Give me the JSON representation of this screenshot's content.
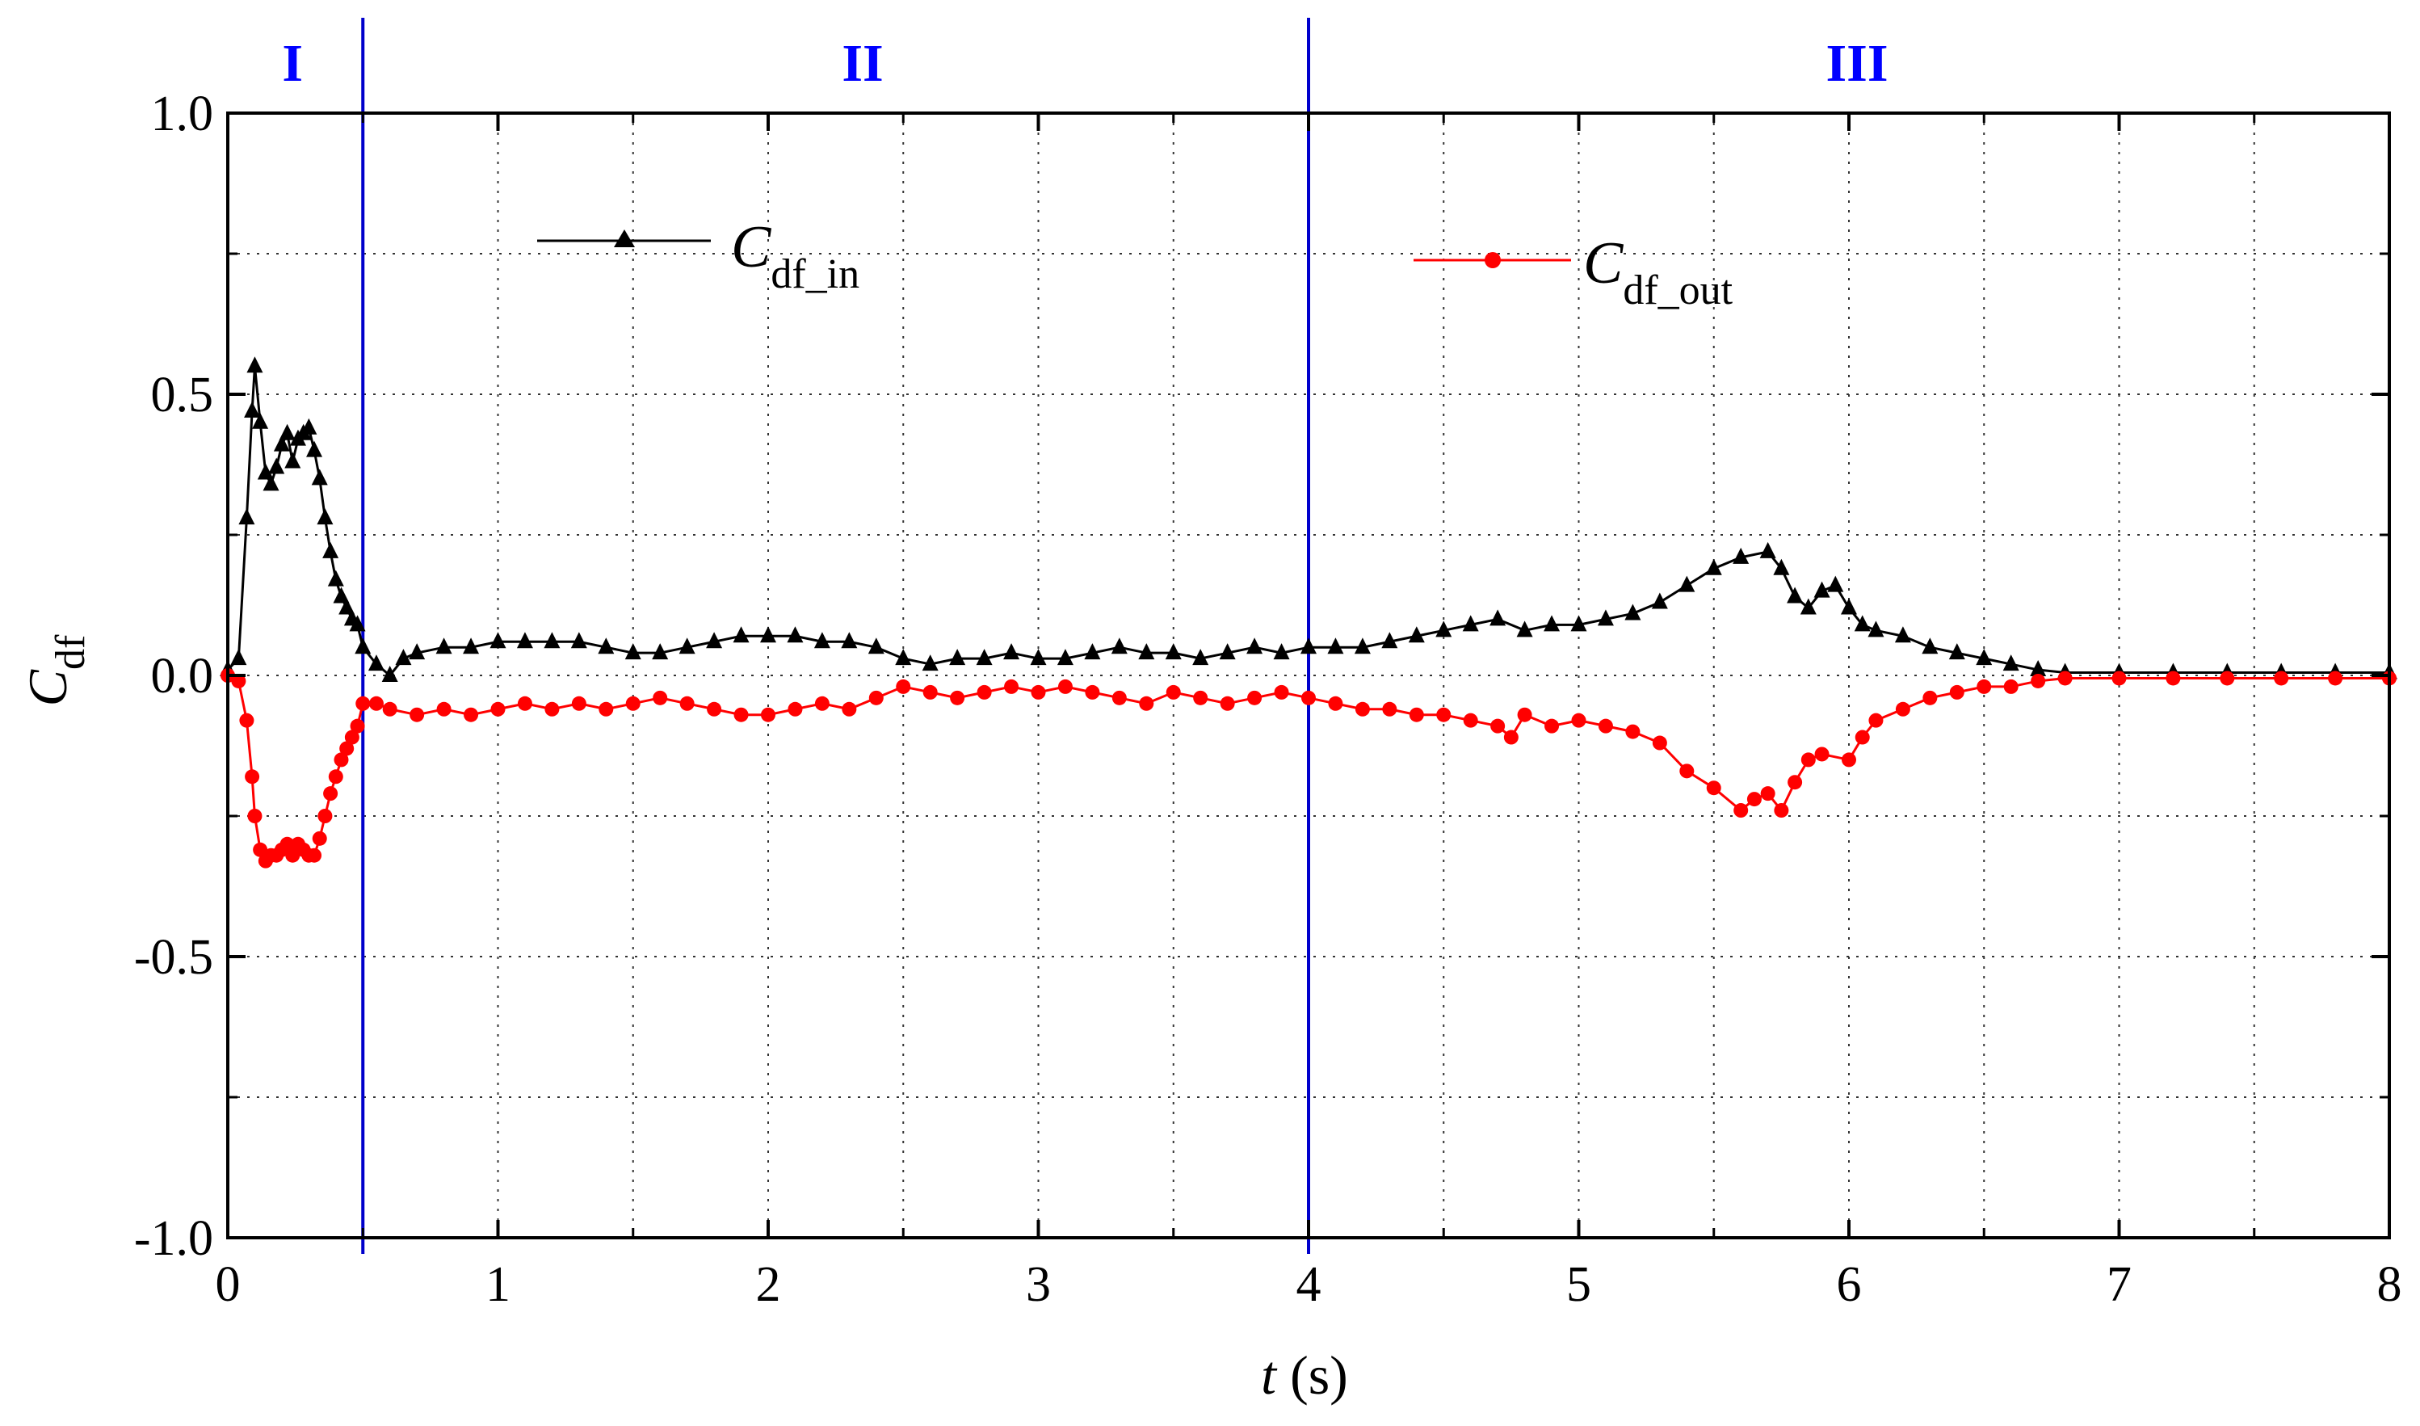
{
  "chart_data": {
    "type": "line",
    "title": "",
    "xlabel_italic": "t",
    "xlabel_unit": " (s)",
    "ylabel_main": "C",
    "ylabel_sub": "df",
    "xlim": [
      0,
      8
    ],
    "ylim": [
      -1.0,
      1.0
    ],
    "x_ticks": [
      0,
      1,
      2,
      3,
      4,
      5,
      6,
      7,
      8
    ],
    "x_tick_labels": [
      "0",
      "1",
      "2",
      "3",
      "4",
      "5",
      "6",
      "7",
      "8"
    ],
    "y_ticks": [
      -1.0,
      -0.5,
      0.0,
      0.5,
      1.0
    ],
    "y_tick_labels": [
      "-1.0",
      "-0.5",
      "0.0",
      "0.5",
      "1.0"
    ],
    "grid": true,
    "legend_placement": "top",
    "region_dividers": [
      0.5,
      4.0
    ],
    "regions": [
      {
        "label": "I",
        "x_center": 0.24
      },
      {
        "label": "II",
        "x_center": 2.35
      },
      {
        "label": "III",
        "x_center": 6.03
      }
    ],
    "divider_color": "#0000cc",
    "series": [
      {
        "name": "C_df_in",
        "legend_main": "C",
        "legend_sub": "df_in",
        "color": "#000000",
        "marker": "triangle",
        "points": [
          [
            0.0,
            0.01
          ],
          [
            0.04,
            0.03
          ],
          [
            0.07,
            0.28
          ],
          [
            0.09,
            0.47
          ],
          [
            0.1,
            0.55
          ],
          [
            0.12,
            0.45
          ],
          [
            0.14,
            0.36
          ],
          [
            0.16,
            0.34
          ],
          [
            0.18,
            0.37
          ],
          [
            0.2,
            0.41
          ],
          [
            0.22,
            0.43
          ],
          [
            0.24,
            0.38
          ],
          [
            0.26,
            0.42
          ],
          [
            0.28,
            0.43
          ],
          [
            0.3,
            0.44
          ],
          [
            0.32,
            0.4
          ],
          [
            0.34,
            0.35
          ],
          [
            0.36,
            0.28
          ],
          [
            0.38,
            0.22
          ],
          [
            0.4,
            0.17
          ],
          [
            0.42,
            0.14
          ],
          [
            0.44,
            0.12
          ],
          [
            0.46,
            0.1
          ],
          [
            0.48,
            0.09
          ],
          [
            0.5,
            0.05
          ],
          [
            0.55,
            0.02
          ],
          [
            0.6,
            0.0
          ],
          [
            0.65,
            0.03
          ],
          [
            0.7,
            0.04
          ],
          [
            0.8,
            0.05
          ],
          [
            0.9,
            0.05
          ],
          [
            1.0,
            0.06
          ],
          [
            1.1,
            0.06
          ],
          [
            1.2,
            0.06
          ],
          [
            1.3,
            0.06
          ],
          [
            1.4,
            0.05
          ],
          [
            1.5,
            0.04
          ],
          [
            1.6,
            0.04
          ],
          [
            1.7,
            0.05
          ],
          [
            1.8,
            0.06
          ],
          [
            1.9,
            0.07
          ],
          [
            2.0,
            0.07
          ],
          [
            2.1,
            0.07
          ],
          [
            2.2,
            0.06
          ],
          [
            2.3,
            0.06
          ],
          [
            2.4,
            0.05
          ],
          [
            2.5,
            0.03
          ],
          [
            2.6,
            0.02
          ],
          [
            2.7,
            0.03
          ],
          [
            2.8,
            0.03
          ],
          [
            2.9,
            0.04
          ],
          [
            3.0,
            0.03
          ],
          [
            3.1,
            0.03
          ],
          [
            3.2,
            0.04
          ],
          [
            3.3,
            0.05
          ],
          [
            3.4,
            0.04
          ],
          [
            3.5,
            0.04
          ],
          [
            3.6,
            0.03
          ],
          [
            3.7,
            0.04
          ],
          [
            3.8,
            0.05
          ],
          [
            3.9,
            0.04
          ],
          [
            4.0,
            0.05
          ],
          [
            4.1,
            0.05
          ],
          [
            4.2,
            0.05
          ],
          [
            4.3,
            0.06
          ],
          [
            4.4,
            0.07
          ],
          [
            4.5,
            0.08
          ],
          [
            4.6,
            0.09
          ],
          [
            4.7,
            0.1
          ],
          [
            4.8,
            0.08
          ],
          [
            4.9,
            0.09
          ],
          [
            5.0,
            0.09
          ],
          [
            5.1,
            0.1
          ],
          [
            5.2,
            0.11
          ],
          [
            5.3,
            0.13
          ],
          [
            5.4,
            0.16
          ],
          [
            5.5,
            0.19
          ],
          [
            5.6,
            0.21
          ],
          [
            5.7,
            0.22
          ],
          [
            5.75,
            0.19
          ],
          [
            5.8,
            0.14
          ],
          [
            5.85,
            0.12
          ],
          [
            5.9,
            0.15
          ],
          [
            5.95,
            0.16
          ],
          [
            6.0,
            0.12
          ],
          [
            6.05,
            0.09
          ],
          [
            6.1,
            0.08
          ],
          [
            6.2,
            0.07
          ],
          [
            6.3,
            0.05
          ],
          [
            6.4,
            0.04
          ],
          [
            6.5,
            0.03
          ],
          [
            6.6,
            0.02
          ],
          [
            6.7,
            0.01
          ],
          [
            6.8,
            0.005
          ],
          [
            7.0,
            0.005
          ],
          [
            7.2,
            0.005
          ],
          [
            7.4,
            0.005
          ],
          [
            7.6,
            0.005
          ],
          [
            7.8,
            0.005
          ],
          [
            8.0,
            0.005
          ]
        ]
      },
      {
        "name": "C_df_out",
        "legend_main": "C",
        "legend_sub": "df_out",
        "color": "#ff0000",
        "marker": "circle",
        "points": [
          [
            0.0,
            0.0
          ],
          [
            0.04,
            -0.01
          ],
          [
            0.07,
            -0.08
          ],
          [
            0.09,
            -0.18
          ],
          [
            0.1,
            -0.25
          ],
          [
            0.12,
            -0.31
          ],
          [
            0.14,
            -0.33
          ],
          [
            0.16,
            -0.32
          ],
          [
            0.18,
            -0.32
          ],
          [
            0.2,
            -0.31
          ],
          [
            0.22,
            -0.3
          ],
          [
            0.24,
            -0.32
          ],
          [
            0.26,
            -0.3
          ],
          [
            0.28,
            -0.31
          ],
          [
            0.3,
            -0.32
          ],
          [
            0.32,
            -0.32
          ],
          [
            0.34,
            -0.29
          ],
          [
            0.36,
            -0.25
          ],
          [
            0.38,
            -0.21
          ],
          [
            0.4,
            -0.18
          ],
          [
            0.42,
            -0.15
          ],
          [
            0.44,
            -0.13
          ],
          [
            0.46,
            -0.11
          ],
          [
            0.48,
            -0.09
          ],
          [
            0.5,
            -0.05
          ],
          [
            0.55,
            -0.05
          ],
          [
            0.6,
            -0.06
          ],
          [
            0.7,
            -0.07
          ],
          [
            0.8,
            -0.06
          ],
          [
            0.9,
            -0.07
          ],
          [
            1.0,
            -0.06
          ],
          [
            1.1,
            -0.05
          ],
          [
            1.2,
            -0.06
          ],
          [
            1.3,
            -0.05
          ],
          [
            1.4,
            -0.06
          ],
          [
            1.5,
            -0.05
          ],
          [
            1.6,
            -0.04
          ],
          [
            1.7,
            -0.05
          ],
          [
            1.8,
            -0.06
          ],
          [
            1.9,
            -0.07
          ],
          [
            2.0,
            -0.07
          ],
          [
            2.1,
            -0.06
          ],
          [
            2.2,
            -0.05
          ],
          [
            2.3,
            -0.06
          ],
          [
            2.4,
            -0.04
          ],
          [
            2.5,
            -0.02
          ],
          [
            2.6,
            -0.03
          ],
          [
            2.7,
            -0.04
          ],
          [
            2.8,
            -0.03
          ],
          [
            2.9,
            -0.02
          ],
          [
            3.0,
            -0.03
          ],
          [
            3.1,
            -0.02
          ],
          [
            3.2,
            -0.03
          ],
          [
            3.3,
            -0.04
          ],
          [
            3.4,
            -0.05
          ],
          [
            3.5,
            -0.03
          ],
          [
            3.6,
            -0.04
          ],
          [
            3.7,
            -0.05
          ],
          [
            3.8,
            -0.04
          ],
          [
            3.9,
            -0.03
          ],
          [
            4.0,
            -0.04
          ],
          [
            4.1,
            -0.05
          ],
          [
            4.2,
            -0.06
          ],
          [
            4.3,
            -0.06
          ],
          [
            4.4,
            -0.07
          ],
          [
            4.5,
            -0.07
          ],
          [
            4.6,
            -0.08
          ],
          [
            4.7,
            -0.09
          ],
          [
            4.75,
            -0.11
          ],
          [
            4.8,
            -0.07
          ],
          [
            4.9,
            -0.09
          ],
          [
            5.0,
            -0.08
          ],
          [
            5.1,
            -0.09
          ],
          [
            5.2,
            -0.1
          ],
          [
            5.3,
            -0.12
          ],
          [
            5.4,
            -0.17
          ],
          [
            5.5,
            -0.2
          ],
          [
            5.6,
            -0.24
          ],
          [
            5.65,
            -0.22
          ],
          [
            5.7,
            -0.21
          ],
          [
            5.75,
            -0.24
          ],
          [
            5.8,
            -0.19
          ],
          [
            5.85,
            -0.15
          ],
          [
            5.9,
            -0.14
          ],
          [
            6.0,
            -0.15
          ],
          [
            6.05,
            -0.11
          ],
          [
            6.1,
            -0.08
          ],
          [
            6.2,
            -0.06
          ],
          [
            6.3,
            -0.04
          ],
          [
            6.4,
            -0.03
          ],
          [
            6.5,
            -0.02
          ],
          [
            6.6,
            -0.02
          ],
          [
            6.7,
            -0.01
          ],
          [
            6.8,
            -0.005
          ],
          [
            7.0,
            -0.005
          ],
          [
            7.2,
            -0.005
          ],
          [
            7.4,
            -0.005
          ],
          [
            7.6,
            -0.005
          ],
          [
            7.8,
            -0.005
          ],
          [
            8.0,
            -0.005
          ]
        ]
      }
    ]
  }
}
